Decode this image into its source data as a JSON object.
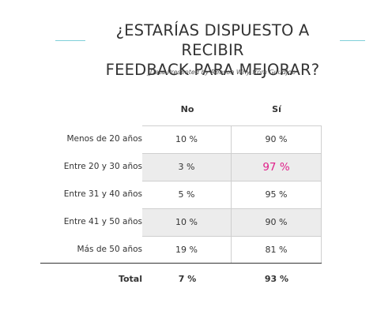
{
  "title_line1": "¿ESTARÍAS DISPUESTO A RECIBIR",
  "title_line2": "FEEDBACK PARA MEJORAR?",
  "subtitle": "_Data Presented by Reason Why from Guudjob",
  "colors": {
    "accent_rule": "#7fcfd9",
    "highlight": "#e0208a",
    "shade": "#ececec"
  },
  "chart_data": {
    "type": "table",
    "columns": [
      "No",
      "Sí"
    ],
    "rows": [
      {
        "label": "Menos de 20 años",
        "no": "10 %",
        "si": "90 %"
      },
      {
        "label": "Entre 20 y 30 años",
        "no": "3 %",
        "si": "97 %"
      },
      {
        "label": "Entre 31 y 40 años",
        "no": "5 %",
        "si": "95 %"
      },
      {
        "label": "Entre 41 y 50 años",
        "no": "10 %",
        "si": "90 %"
      },
      {
        "label": "Más de 50 años",
        "no": "19 %",
        "si": "81 %"
      }
    ],
    "total": {
      "label": "Total",
      "no": "7 %",
      "si": "93 %"
    }
  }
}
